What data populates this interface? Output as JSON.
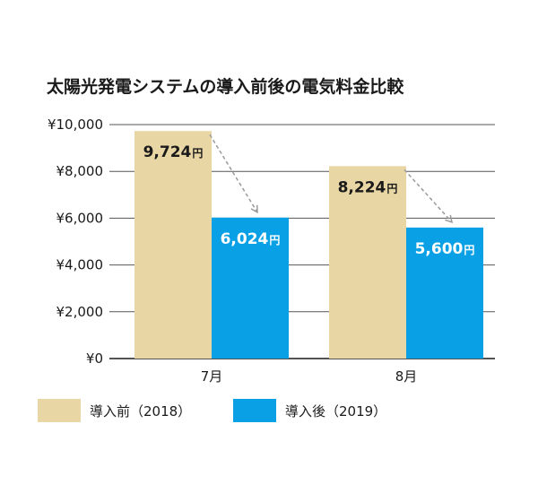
{
  "chart_data": {
    "type": "bar",
    "title": "太陽光発電システムの導入前後の電気料金比較",
    "categories": [
      "7月",
      "8月"
    ],
    "series": [
      {
        "name": "導入前（2018）",
        "values": [
          9724,
          8224
        ],
        "color": "#e8d7a4"
      },
      {
        "name": "導入後（2019）",
        "values": [
          6024,
          5600
        ],
        "color": "#0aa0e6"
      }
    ],
    "data_labels": [
      [
        "9,724",
        "8,224"
      ],
      [
        "6,024",
        "5,600"
      ]
    ],
    "unit": "円",
    "ylim": [
      0,
      10000
    ],
    "yticks": [
      0,
      2000,
      4000,
      6000,
      8000,
      10000
    ],
    "ytick_labels": [
      "¥0",
      "¥2,000",
      "¥4,000",
      "¥6,000",
      "¥8,000",
      "¥10,000"
    ],
    "grid": true,
    "legend_position": "bottom-left",
    "annotations": "dashed arrows from each 導入前 bar to its 導入後 bar"
  }
}
